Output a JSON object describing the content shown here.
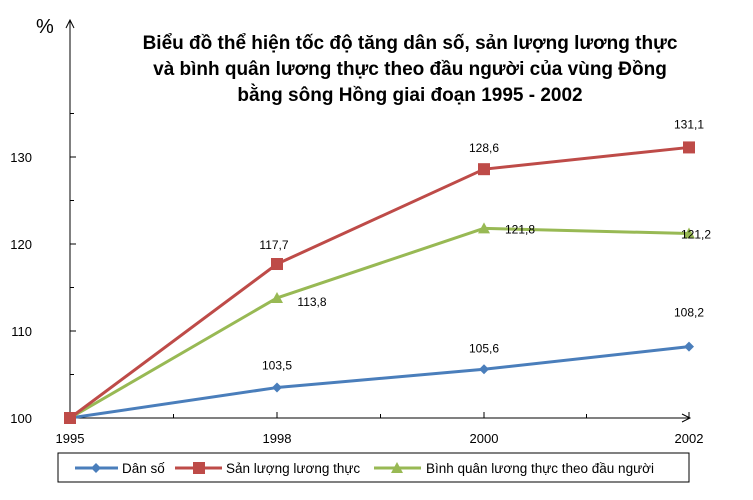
{
  "chart_data": {
    "type": "line",
    "title_lines": [
      "Biểu đồ thể hiện tốc độ tăng dân số, sản lượng lương thực",
      "và bình quân lương thực theo đầu người của vùng Đồng",
      "bằng sông Hồng giai đoạn 1995 - 2002"
    ],
    "y_unit": "%",
    "x": [
      "1995",
      "1998",
      "2000",
      "2002"
    ],
    "y_ticks": [
      "100",
      "110",
      "120",
      "130"
    ],
    "ylim": [
      100,
      140
    ],
    "grid": false,
    "legend_position": "bottom",
    "series": [
      {
        "name": "Dân số",
        "color": "#4a7ebb",
        "marker": "diamond",
        "values": [
          100,
          103.5,
          105.6,
          108.2
        ],
        "labels": [
          "",
          "103,5",
          "105,6",
          "108,2"
        ]
      },
      {
        "name": "Sản lượng lương thực",
        "color": "#be4b48",
        "marker": "square",
        "values": [
          100,
          117.7,
          128.6,
          131.1
        ],
        "labels": [
          "",
          "117,7",
          "128,6",
          "131,1"
        ]
      },
      {
        "name": "Bình quân lương thực theo đầu người",
        "color": "#98b954",
        "marker": "triangle",
        "values": [
          100,
          113.8,
          121.8,
          121.2
        ],
        "labels": [
          "",
          "113,8",
          "121,8",
          "121,2"
        ]
      }
    ]
  }
}
